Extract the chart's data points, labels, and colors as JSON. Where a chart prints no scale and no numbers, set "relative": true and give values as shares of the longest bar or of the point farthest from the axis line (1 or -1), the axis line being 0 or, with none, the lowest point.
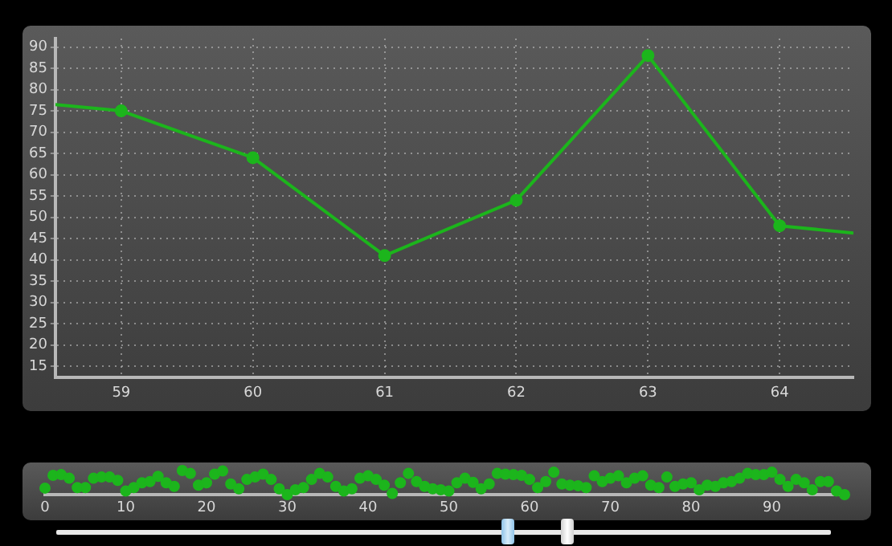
{
  "chart_data": [
    {
      "type": "line",
      "x": [
        58.5,
        59,
        60,
        61,
        62,
        63,
        64,
        64.56
      ],
      "series": [
        {
          "color": "#1cb51c",
          "values": [
            76.5,
            75,
            64,
            41,
            54,
            88,
            48,
            46.3
          ]
        }
      ],
      "xlim": [
        58.5,
        64.56
      ],
      "xticks": [
        59,
        60,
        61,
        62,
        63,
        64
      ],
      "ylim": [
        12.3,
        92
      ],
      "yticks": [
        15,
        20,
        25,
        30,
        35,
        40,
        45,
        50,
        55,
        60,
        65,
        70,
        75,
        80,
        85,
        90
      ],
      "grid": true,
      "marker": "circle",
      "line_style": "solid",
      "legend": false
    },
    {
      "type": "scatter",
      "relative": true,
      "x": [
        0,
        1,
        2,
        3,
        4,
        5,
        6,
        7,
        8,
        9,
        10,
        11,
        12,
        13,
        14,
        15,
        16,
        17,
        18,
        19,
        20,
        21,
        22,
        23,
        24,
        25,
        26,
        27,
        28,
        29,
        30,
        31,
        32,
        33,
        34,
        35,
        36,
        37,
        38,
        39,
        40,
        41,
        42,
        43,
        44,
        45,
        46,
        47,
        48,
        49,
        50,
        51,
        52,
        53,
        54,
        55,
        56,
        57,
        58,
        59,
        60,
        61,
        62,
        63,
        64,
        65,
        66,
        67,
        68,
        69,
        70,
        71,
        72,
        73,
        74,
        75,
        76,
        77,
        78,
        79,
        80,
        81,
        82,
        83,
        84,
        85,
        86,
        87,
        88,
        89,
        90,
        91,
        92,
        93,
        94,
        95,
        96,
        97,
        98,
        99
      ],
      "series": [
        {
          "color": "#1cb51c",
          "values": [
            0.27,
            0.8,
            0.83,
            0.68,
            0.29,
            0.29,
            0.68,
            0.73,
            0.73,
            0.59,
            0.15,
            0.29,
            0.49,
            0.54,
            0.76,
            0.49,
            0.34,
            1,
            0.88,
            0.39,
            0.49,
            0.85,
            0.98,
            0.44,
            0.24,
            0.63,
            0.73,
            0.85,
            0.63,
            0.24,
            0,
            0.2,
            0.29,
            0.63,
            0.88,
            0.73,
            0.34,
            0.15,
            0.24,
            0.68,
            0.78,
            0.63,
            0.39,
            0.05,
            0.49,
            0.88,
            0.54,
            0.34,
            0.24,
            0.2,
            0.15,
            0.49,
            0.68,
            0.51,
            0.24,
            0.44,
            0.88,
            0.85,
            0.83,
            0.8,
            0.63,
            0.29,
            0.54,
            0.93,
            0.44,
            0.39,
            0.37,
            0.29,
            0.78,
            0.54,
            0.68,
            0.78,
            0.49,
            0.68,
            0.78,
            0.39,
            0.29,
            0.73,
            0.34,
            0.44,
            0.49,
            0.2,
            0.39,
            0.34,
            0.49,
            0.54,
            0.68,
            0.88,
            0.83,
            0.83,
            0.93,
            0.63,
            0.34,
            0.63,
            0.49,
            0.2,
            0.54,
            0.54,
            0.15,
            0
          ]
        }
      ],
      "xlim": [
        0,
        99.5
      ],
      "xticks": [
        0,
        10,
        20,
        30,
        40,
        50,
        60,
        70,
        80,
        90
      ],
      "grid": false,
      "marker": "circle",
      "line_style": "solid",
      "legend": false
    }
  ]
}
